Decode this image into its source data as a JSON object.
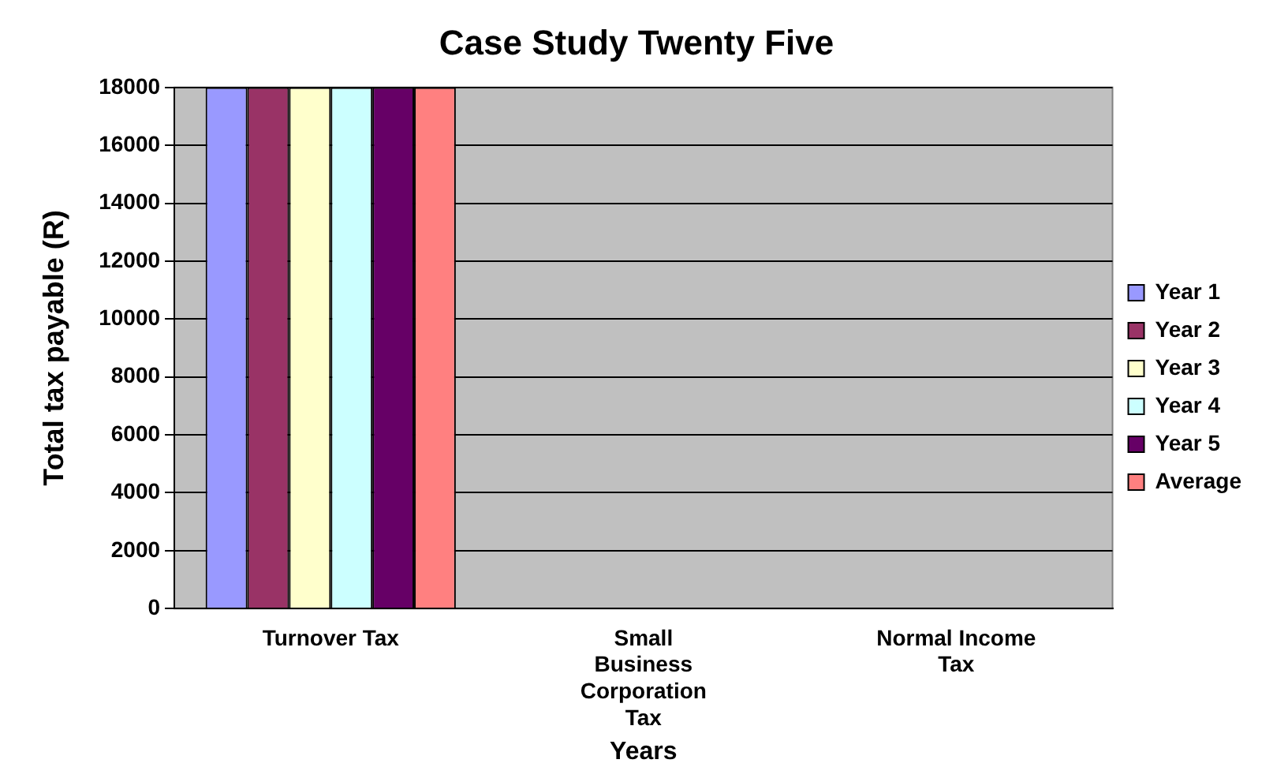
{
  "chart_data": {
    "type": "bar",
    "title": "Case Study Twenty Five",
    "xlabel": "Years",
    "ylabel": "Total tax payable (R)",
    "categories": [
      "Turnover Tax",
      "Small Business Corporation Tax",
      "Normal Income Tax"
    ],
    "series": [
      {
        "name": "Year 1",
        "color": "#9999ff",
        "values": [
          18000,
          0,
          0
        ]
      },
      {
        "name": "Year 2",
        "color": "#993366",
        "values": [
          18000,
          0,
          0
        ]
      },
      {
        "name": "Year 3",
        "color": "#ffffcc",
        "values": [
          18000,
          0,
          0
        ]
      },
      {
        "name": "Year 4",
        "color": "#ccffff",
        "values": [
          18000,
          0,
          0
        ]
      },
      {
        "name": "Year 5",
        "color": "#660066",
        "values": [
          18000,
          0,
          0
        ]
      },
      {
        "name": "Average",
        "color": "#ff8080",
        "values": [
          18000,
          0,
          0
        ]
      }
    ],
    "ylim": [
      0,
      18000
    ],
    "yticks": [
      0,
      2000,
      4000,
      6000,
      8000,
      10000,
      12000,
      14000,
      16000,
      18000
    ],
    "grid": "y",
    "legend": "right"
  }
}
